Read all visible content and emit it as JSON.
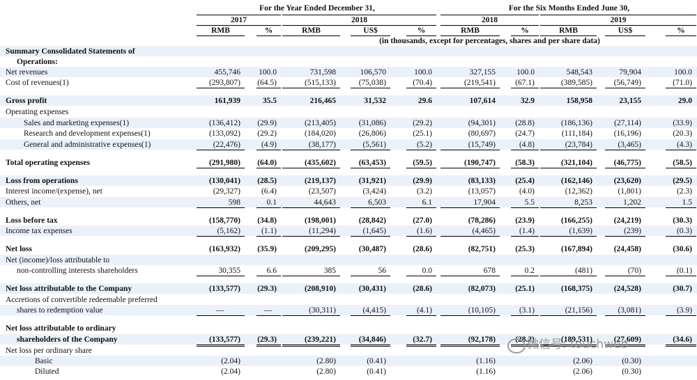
{
  "header": {
    "groups": [
      {
        "label": "For the Year Ended December 31,",
        "from": 0,
        "to": 4
      },
      {
        "label": "For the Six Months Ended June 30,",
        "from": 5,
        "to": 9
      }
    ],
    "years": [
      {
        "label": "2017",
        "from": 0,
        "to": 1
      },
      {
        "label": "2018",
        "from": 2,
        "to": 4
      },
      {
        "label": "2018",
        "from": 5,
        "to": 6
      },
      {
        "label": "2019",
        "from": 7,
        "to": 9
      }
    ],
    "units": [
      "RMB",
      "%",
      "RMB",
      "US$",
      "%",
      "RMB",
      "%",
      "RMB",
      "US$",
      "%"
    ],
    "note": "(in thousands, except for percentages, shares and per share data)"
  },
  "rows": [
    {
      "label": "Summary Consolidated Statements of",
      "bold": true
    },
    {
      "label": "Operations:",
      "bold": true
    },
    {
      "label": "Net revenues",
      "values": [
        "455,746",
        "100.0",
        "731,598",
        "106,570",
        "100.0",
        "327,155",
        "100.0",
        "548,543",
        "79,904",
        "100.0"
      ]
    },
    {
      "label": "Cost of revenues(1)",
      "values": [
        "(293,807)",
        "(64.5)",
        "(515,133)",
        "(75,038)",
        "(70.4)",
        "(219,541)",
        "(67.1)",
        "(389,585)",
        "(56,749)",
        "(71.0)"
      ]
    },
    {
      "label": "Gross profit",
      "bold": true,
      "values": [
        "161,939",
        "35.5",
        "216,465",
        "31,532",
        "29.6",
        "107,614",
        "32.9",
        "158,958",
        "23,155",
        "29.0"
      ]
    },
    {
      "label": "Operating expenses"
    },
    {
      "label": "Sales and marketing expenses(1)",
      "values": [
        "(136,412)",
        "(29.9)",
        "(213,405)",
        "(31,086)",
        "(29.2)",
        "(94,301)",
        "(28.8)",
        "(186,136)",
        "(27,114)",
        "(33.9)"
      ]
    },
    {
      "label": "Research and development expenses(1)",
      "values": [
        "(133,092)",
        "(29.2)",
        "(184,020)",
        "(26,806)",
        "(25.1)",
        "(80,697)",
        "(24.7)",
        "(111,184)",
        "(16,196)",
        "(20.3)"
      ]
    },
    {
      "label": "General and administrative expenses(1)",
      "values": [
        "(22,476)",
        "(4.9)",
        "(38,177)",
        "(5,561)",
        "(5.2)",
        "(15,749)",
        "(4.8)",
        "(23,784)",
        "(3,465)",
        "(4.3)"
      ]
    },
    {
      "label": "Total operating expenses",
      "bold": true,
      "values": [
        "(291,980)",
        "(64.0)",
        "(435,602)",
        "(63,453)",
        "(59.5)",
        "(190,747)",
        "(58.3)",
        "(321,104)",
        "(46,775)",
        "(58.5)"
      ]
    },
    {
      "label": "Loss from operations",
      "bold": true,
      "values": [
        "(130,041)",
        "(28.5)",
        "(219,137)",
        "(31,921)",
        "(29.9)",
        "(83,133)",
        "(25.4)",
        "(162,146)",
        "(23,620)",
        "(29.5)"
      ]
    },
    {
      "label": "Interest income/(expense), net",
      "values": [
        "(29,327)",
        "(6.4)",
        "(23,507)",
        "(3,424)",
        "(3.2)",
        "(13,057)",
        "(4.0)",
        "(12,362)",
        "(1,801)",
        "(2.3)"
      ]
    },
    {
      "label": "Others, net",
      "values": [
        "598",
        "0.1",
        "44,643",
        "6,503",
        "6.1",
        "17,904",
        "5.5",
        "8,253",
        "1,202",
        "1.5"
      ]
    },
    {
      "label": "Loss before tax",
      "bold": true,
      "values": [
        "(158,770)",
        "(34.8)",
        "(198,001)",
        "(28,842)",
        "(27.0)",
        "(78,286)",
        "(23.9)",
        "(166,255)",
        "(24,219)",
        "(30.3)"
      ]
    },
    {
      "label": "Income tax expenses",
      "values": [
        "(5,162)",
        "(1.1)",
        "(11,294)",
        "(1,645)",
        "(1.6)",
        "(4,465)",
        "(1.4)",
        "(1,639)",
        "(239)",
        "(0.3)"
      ]
    },
    {
      "label": "Net loss",
      "bold": true,
      "values": [
        "(163,932)",
        "(35.9)",
        "(209,295)",
        "(30,487)",
        "(28.6)",
        "(82,751)",
        "(25.3)",
        "(167,894)",
        "(24,458)",
        "(30.6)"
      ]
    },
    {
      "label": "Net (income)/loss attributable to"
    },
    {
      "label": "non-controlling interests shareholders",
      "values": [
        "30,355",
        "6.6",
        "385",
        "56",
        "0.0",
        "678",
        "0.2",
        "(481)",
        "(70)",
        "(0.1)"
      ]
    },
    {
      "label": "Net loss attributable to the Company",
      "bold": true,
      "values": [
        "(133,577)",
        "(29.3)",
        "(208,910)",
        "(30,431)",
        "(28.6)",
        "(82,073)",
        "(25.1)",
        "(168,375)",
        "(24,528)",
        "(30.7)"
      ]
    },
    {
      "label": "Accretions of convertible redeemable preferred"
    },
    {
      "label": "shares to redemption value",
      "values": [
        "—",
        "—",
        "(30,311)",
        "(4,415)",
        "(4.1)",
        "(10,105)",
        "(3.1)",
        "(21,156)",
        "(3,081)",
        "(3.9)"
      ]
    },
    {
      "label": "Net loss attributable to ordinary",
      "bold": true
    },
    {
      "label": "shareholders of the Company",
      "bold": true,
      "values": [
        "(133,577)",
        "(29.3)",
        "(239,221)",
        "(34,846)",
        "(32.7)",
        "(92,178)",
        "(28.2)",
        "(189,531)",
        "(27,609)",
        "(34.6)"
      ]
    },
    {
      "label": "Net loss per ordinary share"
    },
    {
      "label": "Basic",
      "values": [
        "(2.04)",
        null,
        "(2.80)",
        "(0.41)",
        null,
        "(1.16)",
        null,
        "(2.06)",
        "(0.30)",
        null
      ]
    },
    {
      "label": "Diluted",
      "values": [
        "(2.04)",
        null,
        "(2.80)",
        "(0.41)",
        null,
        "(1.16)",
        null,
        "(2.06)",
        "(0.30)",
        null
      ]
    }
  ],
  "watermark": "微信号: touchweb"
}
